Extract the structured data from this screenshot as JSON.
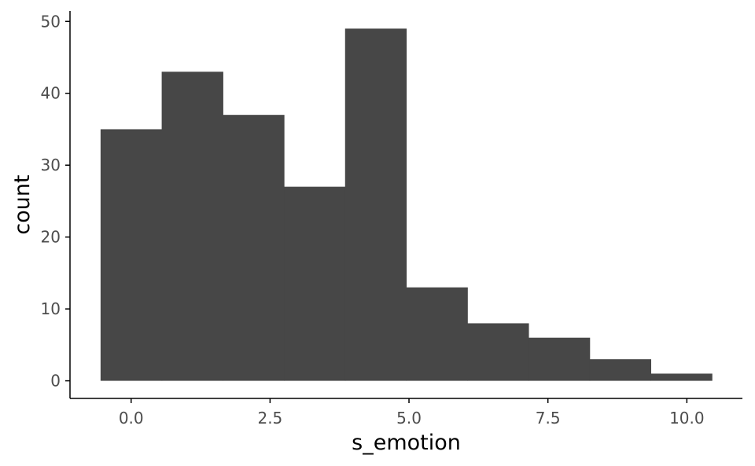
{
  "chart_data": {
    "type": "bar",
    "subtype": "histogram",
    "xlabel": "s_emotion",
    "ylabel": "count",
    "bins": [
      {
        "x0": -0.55,
        "x1": 0.55,
        "count": 35
      },
      {
        "x0": 0.55,
        "x1": 1.65,
        "count": 43
      },
      {
        "x0": 1.65,
        "x1": 2.75,
        "count": 37
      },
      {
        "x0": 2.75,
        "x1": 3.85,
        "count": 27
      },
      {
        "x0": 3.85,
        "x1": 4.95,
        "count": 49
      },
      {
        "x0": 4.95,
        "x1": 6.05,
        "count": 13
      },
      {
        "x0": 6.05,
        "x1": 7.15,
        "count": 8
      },
      {
        "x0": 7.15,
        "x1": 8.25,
        "count": 6
      },
      {
        "x0": 8.25,
        "x1": 9.35,
        "count": 3
      },
      {
        "x0": 9.35,
        "x1": 10.45,
        "count": 1
      }
    ],
    "xlim": [
      -1.1,
      11.0
    ],
    "ylim": [
      -2.45,
      51.45
    ],
    "x_ticks": [
      0.0,
      2.5,
      5.0,
      7.5,
      10.0
    ],
    "x_tick_labels": [
      "0.0",
      "2.5",
      "5.0",
      "7.5",
      "10.0"
    ],
    "y_ticks": [
      0,
      10,
      20,
      30,
      40,
      50
    ],
    "y_tick_labels": [
      "0",
      "10",
      "20",
      "30",
      "40",
      "50"
    ],
    "grid": false,
    "bar_color": "#474747"
  }
}
